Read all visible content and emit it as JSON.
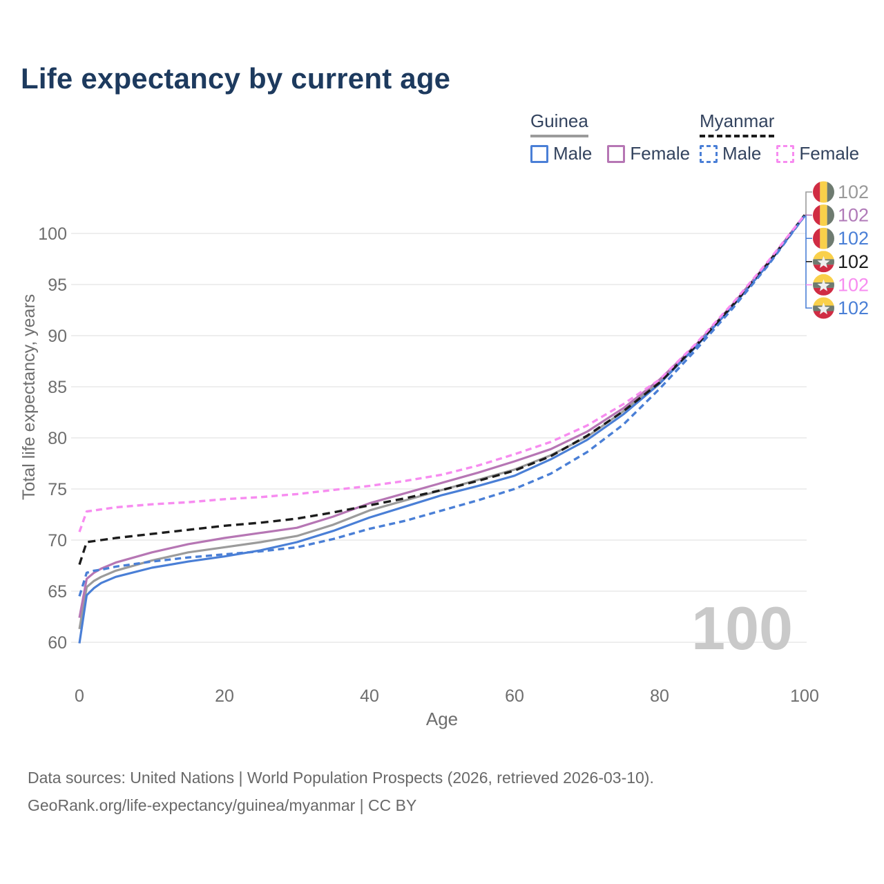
{
  "title": "Life expectancy by current age",
  "legend": {
    "groups": [
      {
        "name": "Guinea",
        "underline": "solid",
        "underline_color": "#9b9b9b",
        "items": [
          {
            "label": "Male",
            "color": "#4a7fd6",
            "dashed": false
          },
          {
            "label": "Female",
            "color": "#b676b4",
            "dashed": false
          }
        ]
      },
      {
        "name": "Myanmar",
        "underline": "dashed",
        "underline_color": "#1c1c1c",
        "items": [
          {
            "label": "Male",
            "color": "#4a7fd6",
            "dashed": true
          },
          {
            "label": "Female",
            "color": "#f78cf0",
            "dashed": true
          }
        ]
      }
    ]
  },
  "chart_data": {
    "type": "line",
    "title": "Life expectancy by current age",
    "xlabel": "Age",
    "ylabel": "Total life expectancy, years",
    "xlim": [
      0,
      100
    ],
    "ylim": [
      59.5,
      102.5
    ],
    "x_ticks": [
      0,
      20,
      40,
      60,
      80,
      100
    ],
    "y_ticks": [
      60,
      65,
      70,
      75,
      80,
      85,
      90,
      95,
      100
    ],
    "grid": "horizontal-only",
    "legend_position": "top-right",
    "ages": [
      0,
      1,
      2,
      3,
      5,
      10,
      15,
      20,
      25,
      30,
      35,
      40,
      45,
      50,
      55,
      60,
      65,
      70,
      75,
      80,
      85,
      90,
      95,
      100
    ],
    "series": [
      {
        "name": "Guinea All",
        "country": "guinea",
        "group": "all",
        "color": "#9b9b9b",
        "dash": null,
        "values": [
          61.3,
          65.4,
          66.0,
          66.4,
          67.0,
          68.0,
          68.8,
          69.3,
          69.8,
          70.4,
          71.5,
          72.9,
          73.9,
          74.9,
          75.9,
          76.9,
          78.3,
          80.1,
          82.6,
          85.5,
          89.0,
          92.9,
          97.1,
          101.8
        ]
      },
      {
        "name": "Guinea Female",
        "country": "guinea",
        "group": "female",
        "color": "#b676b4",
        "dash": null,
        "values": [
          62.4,
          66.2,
          66.8,
          67.2,
          67.8,
          68.8,
          69.6,
          70.2,
          70.7,
          71.2,
          72.3,
          73.6,
          74.6,
          75.6,
          76.6,
          77.7,
          78.9,
          80.6,
          82.9,
          85.7,
          89.1,
          93.0,
          97.2,
          101.8
        ]
      },
      {
        "name": "Guinea Male",
        "country": "guinea",
        "group": "male",
        "color": "#4a7fd6",
        "dash": null,
        "values": [
          59.9,
          64.6,
          65.3,
          65.8,
          66.4,
          67.3,
          67.9,
          68.4,
          69.0,
          69.8,
          70.9,
          72.2,
          73.3,
          74.4,
          75.3,
          76.3,
          77.9,
          79.8,
          82.3,
          85.3,
          88.9,
          92.8,
          97.0,
          101.7
        ]
      },
      {
        "name": "Myanmar All",
        "country": "myanmar",
        "group": "all",
        "color": "#1c1c1c",
        "dash": "11 7",
        "values": [
          67.6,
          69.8,
          69.9,
          70.0,
          70.2,
          70.6,
          71.0,
          71.4,
          71.7,
          72.1,
          72.7,
          73.4,
          74.1,
          74.9,
          75.8,
          76.8,
          78.2,
          80.2,
          82.6,
          85.4,
          89.0,
          92.9,
          97.1,
          101.8
        ]
      },
      {
        "name": "Myanmar Male",
        "country": "myanmar",
        "group": "male",
        "color": "#4a7fd6",
        "dash": "9 6",
        "values": [
          64.5,
          66.8,
          67.0,
          67.1,
          67.4,
          67.9,
          68.3,
          68.6,
          68.9,
          69.3,
          70.1,
          71.1,
          71.9,
          72.9,
          73.9,
          75.0,
          76.5,
          78.6,
          81.3,
          84.8,
          88.6,
          92.6,
          96.9,
          101.7
        ]
      },
      {
        "name": "Myanmar Female",
        "country": "myanmar",
        "group": "female",
        "color": "#f78cf0",
        "dash": "9 6",
        "values": [
          70.8,
          72.8,
          72.9,
          73.0,
          73.2,
          73.5,
          73.7,
          74.0,
          74.2,
          74.5,
          74.9,
          75.3,
          75.8,
          76.4,
          77.3,
          78.4,
          79.6,
          81.2,
          83.3,
          85.7,
          89.2,
          93.1,
          97.3,
          101.8
        ]
      }
    ]
  },
  "end_labels": [
    {
      "country": "guinea",
      "series": "Guinea All",
      "value": "102",
      "color": "#999999"
    },
    {
      "country": "guinea",
      "series": "Guinea Female",
      "value": "102",
      "color": "#b07ab8"
    },
    {
      "country": "guinea",
      "series": "Guinea Male",
      "value": "102",
      "color": "#4a7fd6"
    },
    {
      "country": "myanmar",
      "series": "Myanmar All",
      "value": "102",
      "color": "#1c1c1c"
    },
    {
      "country": "myanmar",
      "series": "Myanmar Female",
      "value": "102",
      "color": "#f78cf0"
    },
    {
      "country": "myanmar",
      "series": "Myanmar Male",
      "value": "102",
      "color": "#4a7fd6"
    }
  ],
  "watermark": "100",
  "footer": {
    "line1": "Data sources: United Nations | World Population Prospects (2026, retrieved 2026-03-10).",
    "line2": "GeoRank.org/life-expectancy/guinea/myanmar | CC BY"
  },
  "colors": {
    "title": "#1d3a5e",
    "axis_text": "#6e6e6e",
    "grid": "#e9e9e9",
    "watermark": "#c9c9c9",
    "footer_text": "#686868",
    "flag_red": "#d02c43",
    "flag_yellow": "#f9d04a",
    "flag_green": "#6e7b70"
  }
}
